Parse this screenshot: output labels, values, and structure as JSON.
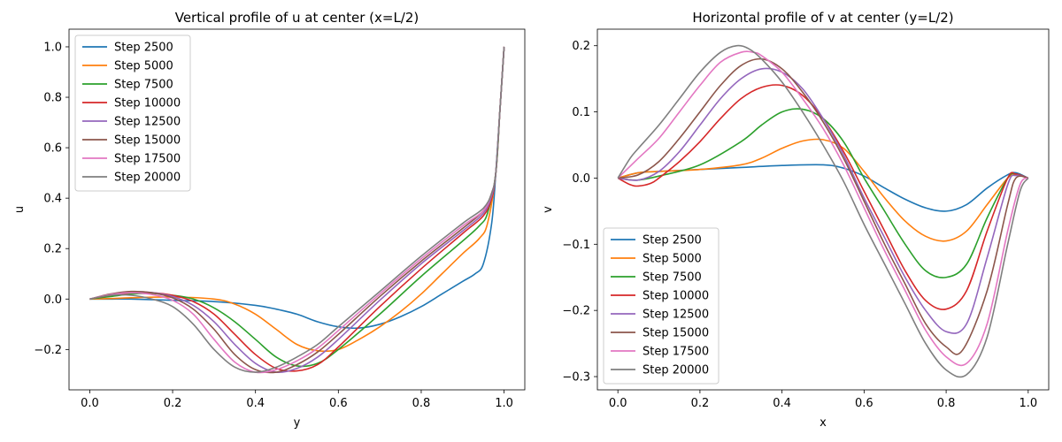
{
  "chart_data": [
    {
      "type": "line",
      "title": "Vertical profile of u at center (x=L/2)",
      "xlabel": "y",
      "ylabel": "u",
      "xlim": [
        -0.05,
        1.05
      ],
      "ylim": [
        -0.36,
        1.07
      ],
      "xticks": [
        0.0,
        0.2,
        0.4,
        0.6,
        0.8,
        1.0
      ],
      "xtick_labels": [
        "0.0",
        "0.2",
        "0.4",
        "0.6",
        "0.8",
        "1.0"
      ],
      "yticks": [
        -0.2,
        0.0,
        0.2,
        0.4,
        0.6,
        0.8,
        1.0
      ],
      "ytick_labels": [
        "−0.2",
        "0.0",
        "0.2",
        "0.4",
        "0.6",
        "0.8",
        "1.0"
      ],
      "legend": "upper-left",
      "grid": false,
      "series": [
        {
          "name": "Step 2500",
          "color": "#1f77b4",
          "x": [
            0,
            0.05,
            0.1,
            0.2,
            0.3,
            0.4,
            0.45,
            0.5,
            0.55,
            0.6,
            0.65,
            0.7,
            0.75,
            0.8,
            0.85,
            0.9,
            0.93,
            0.95,
            0.97,
            0.98,
            0.99,
            1.0
          ],
          "y": [
            0.0,
            0.0,
            0.0,
            -0.005,
            -0.01,
            -0.025,
            -0.04,
            -0.06,
            -0.09,
            -0.11,
            -0.115,
            -0.1,
            -0.07,
            -0.03,
            0.02,
            0.07,
            0.1,
            0.14,
            0.3,
            0.5,
            0.75,
            1.0
          ]
        },
        {
          "name": "Step 5000",
          "color": "#ff7f0e",
          "x": [
            0,
            0.05,
            0.1,
            0.2,
            0.3,
            0.35,
            0.4,
            0.45,
            0.5,
            0.55,
            0.6,
            0.65,
            0.7,
            0.75,
            0.8,
            0.85,
            0.9,
            0.94,
            0.96,
            0.98,
            0.99,
            1.0
          ],
          "y": [
            0.0,
            0.002,
            0.005,
            0.008,
            0.0,
            -0.02,
            -0.06,
            -0.12,
            -0.18,
            -0.205,
            -0.2,
            -0.16,
            -0.11,
            -0.05,
            0.02,
            0.1,
            0.18,
            0.24,
            0.3,
            0.5,
            0.75,
            1.0
          ]
        },
        {
          "name": "Step 7500",
          "color": "#2ca02c",
          "x": [
            0,
            0.05,
            0.1,
            0.15,
            0.2,
            0.25,
            0.3,
            0.35,
            0.4,
            0.45,
            0.5,
            0.55,
            0.6,
            0.7,
            0.8,
            0.9,
            0.94,
            0.96,
            0.98,
            0.99,
            1.0
          ],
          "y": [
            0.0,
            0.01,
            0.02,
            0.022,
            0.015,
            0.0,
            -0.035,
            -0.09,
            -0.16,
            -0.23,
            -0.265,
            -0.255,
            -0.2,
            -0.06,
            0.09,
            0.23,
            0.29,
            0.34,
            0.5,
            0.75,
            1.0
          ]
        },
        {
          "name": "Step 10000",
          "color": "#d62728",
          "x": [
            0,
            0.05,
            0.1,
            0.15,
            0.2,
            0.25,
            0.3,
            0.35,
            0.4,
            0.45,
            0.5,
            0.55,
            0.6,
            0.7,
            0.8,
            0.9,
            0.95,
            0.97,
            0.98,
            0.99,
            1.0
          ],
          "y": [
            0.0,
            0.015,
            0.025,
            0.025,
            0.015,
            -0.01,
            -0.06,
            -0.14,
            -0.22,
            -0.275,
            -0.285,
            -0.26,
            -0.19,
            -0.03,
            0.12,
            0.26,
            0.33,
            0.4,
            0.5,
            0.75,
            1.0
          ]
        },
        {
          "name": "Step 12500",
          "color": "#9467bd",
          "x": [
            0,
            0.05,
            0.1,
            0.15,
            0.2,
            0.25,
            0.3,
            0.35,
            0.4,
            0.45,
            0.5,
            0.55,
            0.6,
            0.7,
            0.8,
            0.9,
            0.95,
            0.97,
            0.98,
            0.99,
            1.0
          ],
          "y": [
            0.0,
            0.018,
            0.028,
            0.026,
            0.01,
            -0.025,
            -0.09,
            -0.18,
            -0.255,
            -0.29,
            -0.275,
            -0.23,
            -0.16,
            -0.005,
            0.14,
            0.27,
            0.34,
            0.41,
            0.5,
            0.75,
            1.0
          ]
        },
        {
          "name": "Step 15000",
          "color": "#8c564b",
          "x": [
            0,
            0.05,
            0.1,
            0.15,
            0.2,
            0.25,
            0.3,
            0.35,
            0.4,
            0.45,
            0.5,
            0.55,
            0.6,
            0.7,
            0.8,
            0.9,
            0.95,
            0.97,
            0.98,
            0.99,
            1.0
          ],
          "y": [
            0.0,
            0.02,
            0.03,
            0.025,
            0.005,
            -0.04,
            -0.12,
            -0.22,
            -0.28,
            -0.29,
            -0.26,
            -0.21,
            -0.14,
            0.01,
            0.15,
            0.28,
            0.35,
            0.42,
            0.5,
            0.75,
            1.0
          ]
        },
        {
          "name": "Step 17500",
          "color": "#e377c2",
          "x": [
            0,
            0.05,
            0.1,
            0.15,
            0.2,
            0.25,
            0.3,
            0.35,
            0.4,
            0.45,
            0.5,
            0.55,
            0.6,
            0.7,
            0.8,
            0.9,
            0.95,
            0.97,
            0.98,
            0.99,
            1.0
          ],
          "y": [
            0.0,
            0.018,
            0.025,
            0.018,
            -0.005,
            -0.06,
            -0.16,
            -0.25,
            -0.29,
            -0.28,
            -0.245,
            -0.195,
            -0.125,
            0.02,
            0.16,
            0.29,
            0.35,
            0.42,
            0.5,
            0.75,
            1.0
          ]
        },
        {
          "name": "Step 20000",
          "color": "#7f7f7f",
          "x": [
            0,
            0.05,
            0.1,
            0.15,
            0.2,
            0.25,
            0.3,
            0.35,
            0.4,
            0.45,
            0.5,
            0.55,
            0.6,
            0.7,
            0.8,
            0.9,
            0.95,
            0.97,
            0.98,
            0.99,
            1.0
          ],
          "y": [
            0.0,
            0.015,
            0.015,
            0.0,
            -0.03,
            -0.1,
            -0.2,
            -0.27,
            -0.29,
            -0.27,
            -0.23,
            -0.18,
            -0.11,
            0.03,
            0.17,
            0.3,
            0.36,
            0.42,
            0.5,
            0.75,
            1.0
          ]
        }
      ]
    },
    {
      "type": "line",
      "title": "Horizontal profile of v at center (y=L/2)",
      "xlabel": "x",
      "ylabel": "v",
      "xlim": [
        -0.05,
        1.05
      ],
      "ylim": [
        -0.32,
        0.225
      ],
      "xticks": [
        0.0,
        0.2,
        0.4,
        0.6,
        0.8,
        1.0
      ],
      "xtick_labels": [
        "0.0",
        "0.2",
        "0.4",
        "0.6",
        "0.8",
        "1.0"
      ],
      "yticks": [
        -0.3,
        -0.2,
        -0.1,
        0.0,
        0.1,
        0.2
      ],
      "ytick_labels": [
        "−0.3",
        "−0.2",
        "−0.1",
        "0.0",
        "0.1",
        "0.2"
      ],
      "legend": "lower-left",
      "grid": false,
      "series": [
        {
          "name": "Step 2500",
          "color": "#1f77b4",
          "x": [
            0,
            0.05,
            0.1,
            0.2,
            0.3,
            0.4,
            0.5,
            0.55,
            0.6,
            0.65,
            0.7,
            0.75,
            0.8,
            0.85,
            0.9,
            0.95,
            0.97,
            1.0
          ],
          "y": [
            0.0,
            0.008,
            0.01,
            0.013,
            0.016,
            0.019,
            0.02,
            0.015,
            0.003,
            -0.015,
            -0.032,
            -0.045,
            -0.05,
            -0.04,
            -0.015,
            0.005,
            0.008,
            0.0
          ]
        },
        {
          "name": "Step 5000",
          "color": "#ff7f0e",
          "x": [
            0,
            0.05,
            0.1,
            0.2,
            0.3,
            0.35,
            0.4,
            0.45,
            0.5,
            0.55,
            0.6,
            0.65,
            0.7,
            0.75,
            0.8,
            0.85,
            0.9,
            0.95,
            0.97,
            1.0
          ],
          "y": [
            0.0,
            0.008,
            0.01,
            0.013,
            0.02,
            0.03,
            0.045,
            0.056,
            0.058,
            0.045,
            0.01,
            -0.03,
            -0.065,
            -0.088,
            -0.095,
            -0.08,
            -0.04,
            0.0,
            0.005,
            0.0
          ]
        },
        {
          "name": "Step 7500",
          "color": "#2ca02c",
          "x": [
            0,
            0.02,
            0.05,
            0.1,
            0.2,
            0.3,
            0.35,
            0.4,
            0.45,
            0.5,
            0.55,
            0.6,
            0.65,
            0.7,
            0.75,
            0.8,
            0.85,
            0.9,
            0.95,
            0.97,
            1.0
          ],
          "y": [
            0.0,
            -0.002,
            -0.003,
            0.003,
            0.02,
            0.055,
            0.08,
            0.1,
            0.104,
            0.09,
            0.055,
            0.0,
            -0.05,
            -0.1,
            -0.14,
            -0.15,
            -0.13,
            -0.06,
            0.0,
            0.006,
            0.0
          ]
        },
        {
          "name": "Step 10000",
          "color": "#d62728",
          "x": [
            0,
            0.03,
            0.05,
            0.08,
            0.1,
            0.15,
            0.2,
            0.25,
            0.3,
            0.35,
            0.4,
            0.45,
            0.5,
            0.55,
            0.6,
            0.65,
            0.7,
            0.75,
            0.8,
            0.85,
            0.9,
            0.95,
            0.97,
            1.0
          ],
          "y": [
            0.0,
            -0.01,
            -0.012,
            -0.008,
            0.0,
            0.025,
            0.055,
            0.09,
            0.12,
            0.137,
            0.14,
            0.125,
            0.09,
            0.04,
            -0.02,
            -0.08,
            -0.14,
            -0.185,
            -0.198,
            -0.17,
            -0.08,
            0.0,
            0.006,
            0.0
          ]
        },
        {
          "name": "Step 12500",
          "color": "#9467bd",
          "x": [
            0,
            0.05,
            0.1,
            0.15,
            0.2,
            0.25,
            0.3,
            0.35,
            0.4,
            0.45,
            0.5,
            0.55,
            0.6,
            0.65,
            0.7,
            0.75,
            0.8,
            0.85,
            0.9,
            0.95,
            0.97,
            1.0
          ],
          "y": [
            0.0,
            -0.003,
            0.01,
            0.04,
            0.08,
            0.12,
            0.15,
            0.165,
            0.16,
            0.135,
            0.09,
            0.035,
            -0.03,
            -0.09,
            -0.15,
            -0.2,
            -0.232,
            -0.22,
            -0.12,
            -0.01,
            0.004,
            0.0
          ]
        },
        {
          "name": "Step 15000",
          "color": "#8c564b",
          "x": [
            0,
            0.05,
            0.1,
            0.15,
            0.2,
            0.25,
            0.3,
            0.35,
            0.4,
            0.45,
            0.5,
            0.55,
            0.6,
            0.65,
            0.7,
            0.75,
            0.8,
            0.84,
            0.9,
            0.95,
            0.97,
            1.0
          ],
          "y": [
            0.0,
            0.005,
            0.025,
            0.06,
            0.1,
            0.14,
            0.17,
            0.18,
            0.165,
            0.13,
            0.085,
            0.03,
            -0.035,
            -0.1,
            -0.16,
            -0.22,
            -0.255,
            -0.26,
            -0.17,
            -0.04,
            0.0,
            0.0
          ]
        },
        {
          "name": "Step 17500",
          "color": "#e377c2",
          "x": [
            0,
            0.05,
            0.1,
            0.15,
            0.2,
            0.25,
            0.3,
            0.33,
            0.35,
            0.4,
            0.45,
            0.5,
            0.55,
            0.6,
            0.65,
            0.7,
            0.75,
            0.8,
            0.85,
            0.9,
            0.95,
            0.98,
            1.0
          ],
          "y": [
            0.0,
            0.03,
            0.06,
            0.1,
            0.14,
            0.175,
            0.19,
            0.19,
            0.185,
            0.16,
            0.12,
            0.075,
            0.02,
            -0.045,
            -0.11,
            -0.17,
            -0.23,
            -0.27,
            -0.28,
            -0.22,
            -0.08,
            -0.01,
            0.0
          ]
        },
        {
          "name": "Step 20000",
          "color": "#7f7f7f",
          "x": [
            0,
            0.03,
            0.05,
            0.1,
            0.15,
            0.2,
            0.25,
            0.29,
            0.32,
            0.35,
            0.4,
            0.45,
            0.5,
            0.55,
            0.6,
            0.65,
            0.7,
            0.75,
            0.8,
            0.85,
            0.9,
            0.95,
            0.98,
            1.0
          ],
          "y": [
            0.0,
            0.03,
            0.045,
            0.08,
            0.12,
            0.16,
            0.19,
            0.2,
            0.195,
            0.18,
            0.145,
            0.1,
            0.05,
            -0.005,
            -0.07,
            -0.13,
            -0.19,
            -0.25,
            -0.29,
            -0.297,
            -0.24,
            -0.1,
            -0.02,
            0.0
          ]
        }
      ]
    }
  ]
}
